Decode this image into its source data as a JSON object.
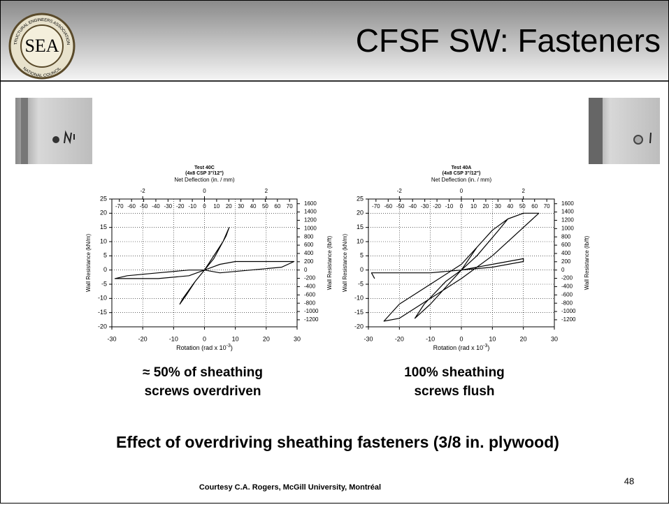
{
  "header": {
    "title": "CFSF SW: Fasteners",
    "logo": {
      "initials": "SEA",
      "ring_top": "STRUCTURAL ENGINEERS ASSOCIATIONS",
      "ring_bottom": "NATIONAL COUNCIL"
    }
  },
  "chart_data": [
    {
      "type": "line",
      "title": "Test 40C",
      "subtitle": "(4x8 CSP 3\"/12\")",
      "x2_label": "Net Deflection (in. / mm)",
      "x_label": {
        "text": "Rotation (rad x 10",
        "exponent": "-3",
        "suffix": ")"
      },
      "y_label": "Wall Resistance (kN/m)",
      "y2_label": "Wall Resistance (lb/ft)",
      "xlim": [
        -30,
        30
      ],
      "xticks": [
        -30,
        -20,
        -10,
        0,
        10,
        20,
        30
      ],
      "ylim": [
        -20,
        25
      ],
      "yticks": [
        -20,
        -15,
        -10,
        -5,
        0,
        5,
        10,
        15,
        20,
        25
      ],
      "y2lim": [
        -1370,
        1713
      ],
      "y2ticks": [
        -1200,
        -1000,
        -800,
        -600,
        -400,
        -200,
        0,
        200,
        400,
        600,
        800,
        1000,
        1200,
        1400,
        1600
      ],
      "x2lim": [
        -3.0,
        3.0
      ],
      "x2ticks": [
        -2,
        0,
        2
      ],
      "x3lim": [
        -76.2,
        76.2
      ],
      "x3ticks": [
        -70,
        -60,
        -50,
        -40,
        -30,
        -20,
        -10,
        0,
        10,
        20,
        30,
        40,
        50,
        60,
        70
      ],
      "grid": true,
      "series": [
        {
          "color": "#000000",
          "x": [
            0,
            3,
            6,
            8,
            7,
            3,
            0,
            -3,
            -6,
            -8,
            -7,
            -3,
            0,
            5,
            10,
            20,
            29,
            25,
            15,
            5,
            0,
            -5,
            -15,
            -29,
            -25,
            -15,
            -5,
            0
          ],
          "values": [
            0,
            5,
            10,
            15,
            12,
            4,
            0,
            -4,
            -9,
            -12,
            -10,
            -4,
            0,
            2,
            3,
            3,
            3,
            1,
            0,
            -1,
            0,
            -2,
            -3,
            -3,
            -2,
            -1,
            0,
            0
          ]
        }
      ]
    },
    {
      "type": "line",
      "title": "Test 40A",
      "subtitle": "(4x8 CSP 3\"/12\")",
      "x2_label": "Net Deflection (in. / mm)",
      "x_label": {
        "text": "Rotation (rad x 10",
        "exponent": "-3",
        "suffix": ")"
      },
      "y_label": "Wall Resistance (kN/m)",
      "y2_label": "Wall Resistance (lb/ft)",
      "xlim": [
        -30,
        30
      ],
      "xticks": [
        -30,
        -20,
        -10,
        0,
        10,
        20,
        30
      ],
      "ylim": [
        -20,
        25
      ],
      "yticks": [
        -20,
        -15,
        -10,
        -5,
        0,
        5,
        10,
        15,
        20,
        25
      ],
      "y2lim": [
        -1370,
        1713
      ],
      "y2ticks": [
        -1200,
        -1000,
        -800,
        -600,
        -400,
        -200,
        0,
        200,
        400,
        600,
        800,
        1000,
        1200,
        1400,
        1600
      ],
      "x2lim": [
        -3.0,
        3.0
      ],
      "x2ticks": [
        -2,
        0,
        2
      ],
      "x3lim": [
        -76.2,
        76.2
      ],
      "x3ticks": [
        -70,
        -60,
        -50,
        -40,
        -30,
        -20,
        -10,
        0,
        10,
        20,
        30,
        40,
        50,
        60,
        70
      ],
      "grid": true,
      "series": [
        {
          "color": "#000000",
          "x": [
            0,
            5,
            10,
            15,
            20,
            25,
            20,
            10,
            0,
            -10,
            -20,
            -25,
            -20,
            -10,
            0,
            5,
            10,
            15,
            12,
            5,
            0,
            -5,
            -10,
            -15,
            -12,
            -5,
            0,
            10,
            20,
            20,
            10,
            0,
            -10,
            -20,
            -29,
            -28
          ],
          "values": [
            0,
            8,
            14,
            18,
            20,
            20,
            15,
            5,
            -3,
            -10,
            -17,
            -18,
            -12,
            -5,
            2,
            8,
            14,
            18,
            14,
            5,
            0,
            -6,
            -12,
            -17,
            -12,
            -4,
            0,
            2,
            4,
            3,
            1,
            0,
            -1,
            -1,
            -1,
            -3
          ]
        }
      ]
    }
  ],
  "captions": [
    [
      "≈ 50% of sheathing",
      "screws overdriven"
    ],
    [
      "100% sheathing",
      "screws flush"
    ]
  ],
  "statement": "Effect of overdriving sheathing fasteners (3/8 in. plywood)",
  "footer": "Courtesy C.A. Rogers, McGill University, Montréal",
  "page_number": "48"
}
